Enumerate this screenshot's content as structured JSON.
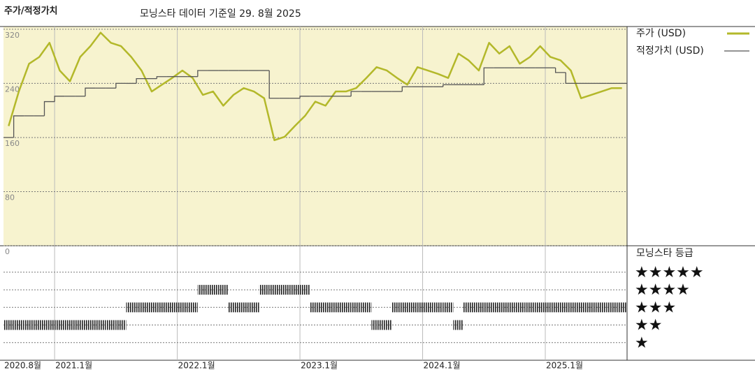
{
  "chart_data": {
    "type": "line",
    "title": "주가/적정가치",
    "subtitle": "모닝스타 데이터 기준일 29. 8월 2025",
    "x": [
      "2020-08",
      "2020-09",
      "2020-10",
      "2020-11",
      "2020-12",
      "2021-01",
      "2021-02",
      "2021-03",
      "2021-04",
      "2021-05",
      "2021-06",
      "2021-07",
      "2021-08",
      "2021-09",
      "2021-10",
      "2021-11",
      "2021-12",
      "2022-01",
      "2022-02",
      "2022-03",
      "2022-04",
      "2022-05",
      "2022-06",
      "2022-07",
      "2022-08",
      "2022-09",
      "2022-10",
      "2022-11",
      "2022-12",
      "2023-01",
      "2023-02",
      "2023-03",
      "2023-04",
      "2023-05",
      "2023-06",
      "2023-07",
      "2023-08",
      "2023-09",
      "2023-10",
      "2023-11",
      "2023-12",
      "2024-01",
      "2024-02",
      "2024-03",
      "2024-04",
      "2024-05",
      "2024-06",
      "2024-07",
      "2024-08",
      "2024-09",
      "2024-10",
      "2024-11",
      "2024-12",
      "2025-01",
      "2025-02",
      "2025-03",
      "2025-04",
      "2025-05",
      "2025-06",
      "2025-07",
      "2025-08"
    ],
    "xlim": [
      "2020-08",
      "2025-09"
    ],
    "xticks": [
      {
        "value": "2020-08",
        "label": "2020.8월"
      },
      {
        "value": "2021-01",
        "label": "2021.1월"
      },
      {
        "value": "2022-01",
        "label": "2022.1월"
      },
      {
        "value": "2023-01",
        "label": "2023.1월"
      },
      {
        "value": "2024-01",
        "label": "2024.1월"
      },
      {
        "value": "2025-01",
        "label": "2025.1월"
      }
    ],
    "ylim": [
      0,
      324
    ],
    "yticks": [
      320,
      240,
      160,
      80,
      0
    ],
    "grid": true,
    "series": [
      {
        "name": "주가 (USD)",
        "color": "#b3b82a",
        "values": [
          177,
          228,
          269,
          279,
          300,
          259,
          243,
          279,
          295,
          315,
          300,
          295,
          279,
          259,
          228,
          238,
          248,
          259,
          248,
          223,
          228,
          207,
          223,
          233,
          228,
          218,
          156,
          161,
          177,
          192,
          213,
          207,
          228,
          228,
          233,
          248,
          264,
          259,
          248,
          238,
          264,
          259,
          254,
          248,
          284,
          274,
          259,
          300,
          284,
          295,
          269,
          279,
          295,
          279,
          274,
          259,
          218,
          223,
          228,
          233,
          233
        ]
      },
      {
        "name": "적정가치 (USD)",
        "color": "#555555",
        "step": true,
        "values": [
          160,
          192,
          192,
          192,
          213,
          221,
          221,
          221,
          233,
          233,
          233,
          240,
          240,
          247,
          247,
          250,
          250,
          250,
          250,
          259,
          259,
          259,
          259,
          259,
          259,
          259,
          218,
          218,
          218,
          221,
          221,
          221,
          221,
          221,
          228,
          228,
          228,
          228,
          228,
          235,
          235,
          235,
          235,
          238,
          238,
          238,
          238,
          263,
          263,
          263,
          263,
          263,
          263,
          263,
          256,
          240,
          240,
          240,
          240,
          240,
          240
        ]
      }
    ],
    "rating": {
      "title": "모닝스타 등급",
      "lim": [
        0,
        6.5
      ],
      "ticks": [
        {
          "value": 5,
          "label": "★★★★★"
        },
        {
          "value": 4,
          "label": "★★★★"
        },
        {
          "value": 3,
          "label": "★★★"
        },
        {
          "value": 2,
          "label": "★★"
        },
        {
          "value": 1,
          "label": "★"
        }
      ],
      "values": [
        2,
        2,
        2,
        2,
        2,
        2,
        2,
        2,
        2,
        2,
        2,
        2,
        3,
        3,
        3,
        3,
        3,
        3,
        3,
        4,
        4,
        4,
        3,
        3,
        3,
        4,
        4,
        4,
        4,
        4,
        3,
        3,
        3,
        3,
        3,
        3,
        2,
        2,
        3,
        3,
        3,
        3,
        3,
        3,
        2,
        3,
        3,
        3,
        3,
        3,
        3,
        3,
        3,
        3,
        3,
        3,
        3,
        3,
        3,
        3,
        3
      ]
    }
  }
}
